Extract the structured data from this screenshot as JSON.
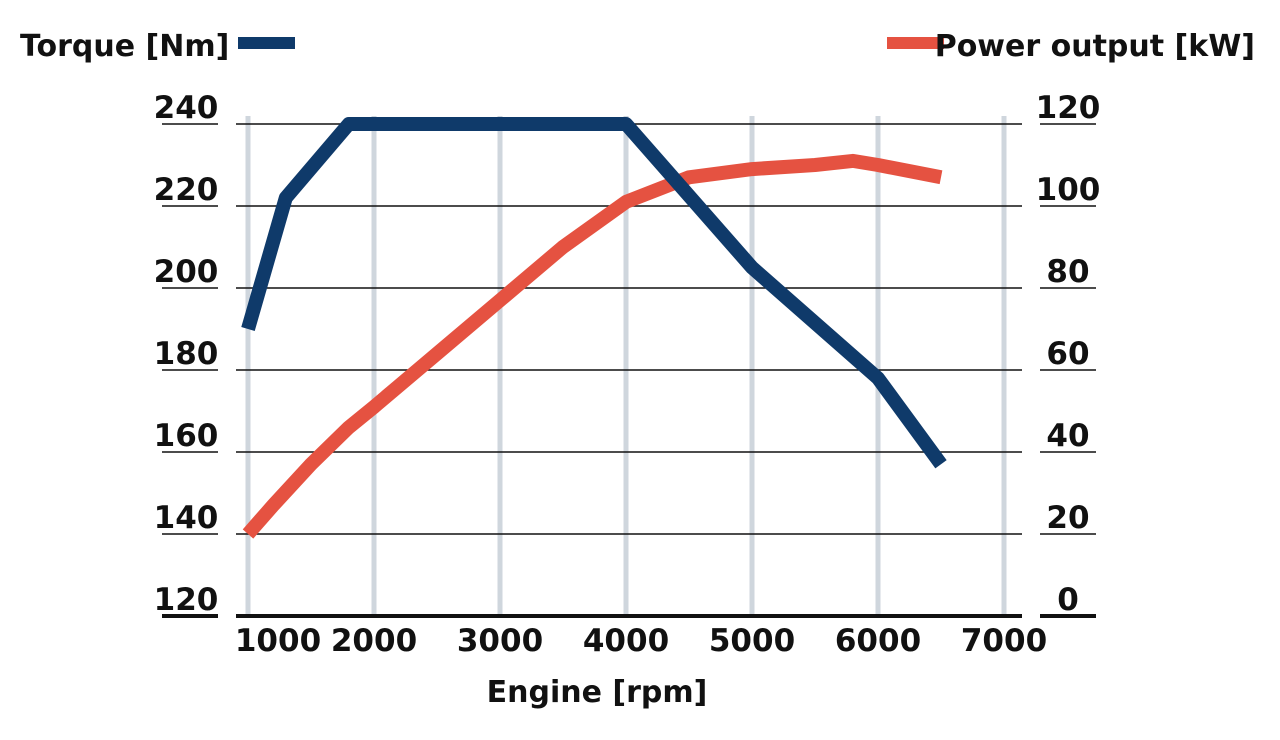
{
  "chart_data": {
    "type": "line",
    "title": "",
    "xlabel": "Engine [rpm]",
    "ylabel_left": "Torque [Nm]",
    "ylabel_right": "Power output [kW]",
    "xlim": [
      1000,
      7000
    ],
    "ylim_left": [
      120,
      240
    ],
    "ylim_right": [
      0,
      120
    ],
    "x_ticks": [
      "1000",
      "2000",
      "3000",
      "4000",
      "5000",
      "6000",
      "7000"
    ],
    "y_left_ticks": [
      "120",
      "140",
      "160",
      "180",
      "200",
      "220",
      "240"
    ],
    "y_right_ticks": [
      "0",
      "20",
      "40",
      "60",
      "80",
      "100",
      "120"
    ],
    "grid": true,
    "legend_placement": "top",
    "series": [
      {
        "name": "Torque [Nm]",
        "axis": "left",
        "color": "#0f3a6a",
        "points": [
          [
            1000,
            190
          ],
          [
            1300,
            222
          ],
          [
            1800,
            240
          ],
          [
            4000,
            240
          ],
          [
            5000,
            205
          ],
          [
            6000,
            178
          ],
          [
            6500,
            157
          ]
        ]
      },
      {
        "name": "Power output [kW]",
        "axis": "right",
        "color": "#e55241",
        "points": [
          [
            1000,
            20
          ],
          [
            1200,
            27
          ],
          [
            1500,
            37
          ],
          [
            1800,
            46
          ],
          [
            2000,
            51
          ],
          [
            2500,
            64
          ],
          [
            3000,
            77
          ],
          [
            3500,
            90
          ],
          [
            4000,
            101
          ],
          [
            4500,
            107
          ],
          [
            5000,
            109
          ],
          [
            5500,
            110
          ],
          [
            5800,
            111
          ],
          [
            6000,
            110
          ],
          [
            6500,
            107
          ]
        ]
      }
    ]
  }
}
